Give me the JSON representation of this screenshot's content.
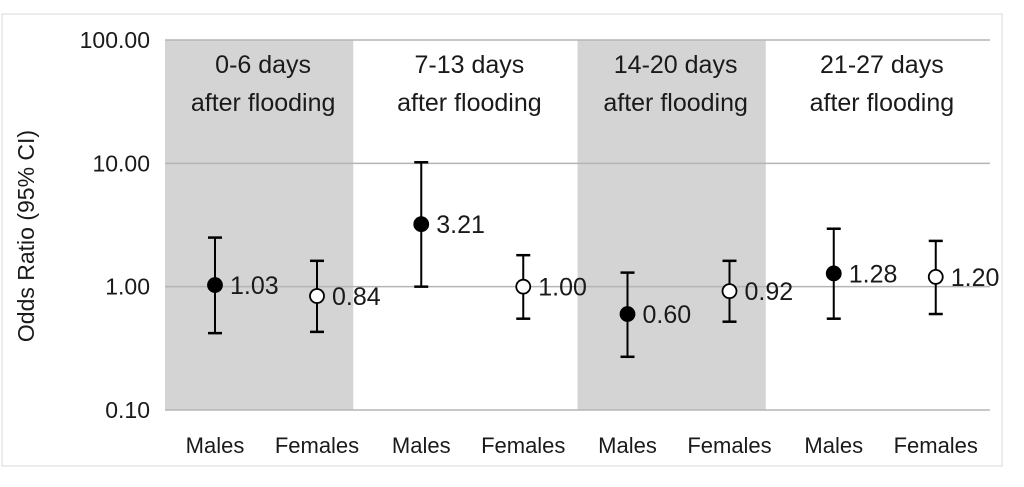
{
  "chart_data": {
    "type": "scatter",
    "ylabel": "Odds Ratio (95% CI)",
    "yscale": "log",
    "ylim": [
      0.1,
      100
    ],
    "yticks": [
      "0.10",
      "1.00",
      "10.00",
      "100.00"
    ],
    "grid": true,
    "categories": [
      "Males",
      "Females",
      "Males",
      "Females",
      "Males",
      "Females",
      "Males",
      "Females"
    ],
    "groups": [
      {
        "label_line1": "0-6 days",
        "label_line2": "after flooding",
        "shaded": true
      },
      {
        "label_line1": "7-13 days",
        "label_line2": "after flooding",
        "shaded": false
      },
      {
        "label_line1": "14-20 days",
        "label_line2": "after flooding",
        "shaded": true
      },
      {
        "label_line1": "21-27 days",
        "label_line2": "after flooding",
        "shaded": false
      }
    ],
    "points": [
      {
        "group": 0,
        "category": "Males",
        "or": 1.03,
        "lower": 0.42,
        "upper": 2.5,
        "label": "1.03",
        "marker": "filled"
      },
      {
        "group": 0,
        "category": "Females",
        "or": 0.84,
        "lower": 0.43,
        "upper": 1.62,
        "label": "0.84",
        "marker": "open"
      },
      {
        "group": 1,
        "category": "Males",
        "or": 3.21,
        "lower": 1.0,
        "upper": 10.2,
        "label": "3.21",
        "marker": "filled"
      },
      {
        "group": 1,
        "category": "Females",
        "or": 1.0,
        "lower": 0.55,
        "upper": 1.8,
        "label": "1.00",
        "marker": "open"
      },
      {
        "group": 2,
        "category": "Males",
        "or": 0.6,
        "lower": 0.27,
        "upper": 1.3,
        "label": "0.60",
        "marker": "filled"
      },
      {
        "group": 2,
        "category": "Females",
        "or": 0.92,
        "lower": 0.52,
        "upper": 1.62,
        "label": "0.92",
        "marker": "open"
      },
      {
        "group": 3,
        "category": "Males",
        "or": 1.28,
        "lower": 0.55,
        "upper": 2.95,
        "label": "1.28",
        "marker": "filled"
      },
      {
        "group": 3,
        "category": "Females",
        "or": 1.2,
        "lower": 0.6,
        "upper": 2.35,
        "label": "1.20",
        "marker": "open"
      }
    ],
    "colors": {
      "shade": "#d4d4d4",
      "grid": "#b5b5b5",
      "marker": "#000000",
      "text": "#1a1a1a"
    }
  }
}
